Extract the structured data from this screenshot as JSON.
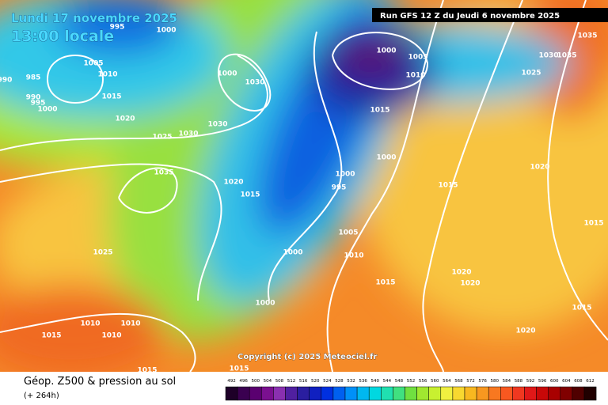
{
  "header": {
    "date": "Lundi 17 novembre 2025",
    "time": "13:00 locale",
    "run": "Run GFS 12 Z du Jeudi 6 novembre 2025"
  },
  "copyright": "Copyright (c) 2025 Meteociel.fr",
  "legend": {
    "title": "Géop. Z500 & pression au sol",
    "lead": "(+ 264h)",
    "scale": [
      492,
      496,
      500,
      504,
      508,
      512,
      516,
      520,
      524,
      528,
      532,
      536,
      540,
      544,
      548,
      552,
      556,
      560,
      564,
      568,
      572,
      576,
      580,
      584,
      588,
      592,
      596,
      600,
      604,
      608,
      612
    ],
    "colors": [
      "#1e0028",
      "#3a0050",
      "#5a0070",
      "#7a1090",
      "#8a30b0",
      "#5020a0",
      "#2a1ea0",
      "#1020c0",
      "#0030e0",
      "#0060f0",
      "#0090f8",
      "#00b8f0",
      "#00d8e0",
      "#20e0b0",
      "#40e080",
      "#70e040",
      "#a0e830",
      "#c8f030",
      "#f0f040",
      "#f8d830",
      "#f8b820",
      "#f89820",
      "#f87820",
      "#f85820",
      "#f03820",
      "#e01818",
      "#c80808",
      "#a80000",
      "#800000",
      "#500000",
      "#200000"
    ]
  },
  "isobar_labels": [
    995,
    1000,
    1005,
    1010,
    985,
    990,
    990,
    995,
    1000,
    1015,
    1020,
    1025,
    1030,
    1030,
    1030,
    1000,
    1035,
    1020,
    1015,
    1025,
    1000,
    1005,
    1010,
    1015,
    1000,
    1000,
    995,
    1015,
    1005,
    1000,
    1010,
    1015,
    1020,
    1020,
    1000,
    1010,
    1010,
    1010,
    1015,
    1015,
    1015,
    1035,
    1030,
    1035,
    1025,
    1020,
    1015,
    1015,
    1020
  ]
}
